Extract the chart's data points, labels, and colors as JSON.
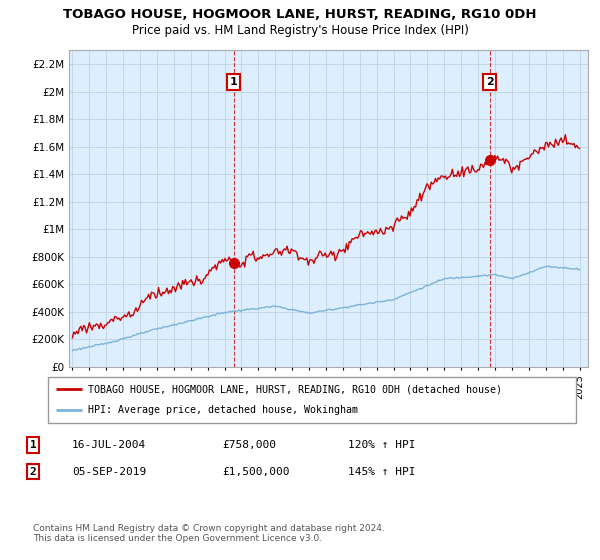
{
  "title": "TOBAGO HOUSE, HOGMOOR LANE, HURST, READING, RG10 0DH",
  "subtitle": "Price paid vs. HM Land Registry's House Price Index (HPI)",
  "ylabel_ticks": [
    "£0",
    "£200K",
    "£400K",
    "£600K",
    "£800K",
    "£1M",
    "£1.2M",
    "£1.4M",
    "£1.6M",
    "£1.8M",
    "£2M",
    "£2.2M"
  ],
  "ytick_values": [
    0,
    200000,
    400000,
    600000,
    800000,
    1000000,
    1200000,
    1400000,
    1600000,
    1800000,
    2000000,
    2200000
  ],
  "ylim": [
    0,
    2300000
  ],
  "xlim_start": 1994.8,
  "xlim_end": 2025.5,
  "sale1_x": 2004.54,
  "sale1_y": 758000,
  "sale1_label": "1",
  "sale1_date": "16-JUL-2004",
  "sale1_price": "£758,000",
  "sale1_hpi": "120% ↑ HPI",
  "sale2_x": 2019.68,
  "sale2_y": 1500000,
  "sale2_label": "2",
  "sale2_date": "05-SEP-2019",
  "sale2_price": "£1,500,000",
  "sale2_hpi": "145% ↑ HPI",
  "line_color_red": "#cc0000",
  "line_color_blue": "#7ab4d8",
  "plot_bg_color": "#ddeeff",
  "legend_label_red": "TOBAGO HOUSE, HOGMOOR LANE, HURST, READING, RG10 0DH (detached house)",
  "legend_label_blue": "HPI: Average price, detached house, Wokingham",
  "footnote": "Contains HM Land Registry data © Crown copyright and database right 2024.\nThis data is licensed under the Open Government Licence v3.0.",
  "background_color": "#ffffff",
  "grid_color": "#bbccdd"
}
